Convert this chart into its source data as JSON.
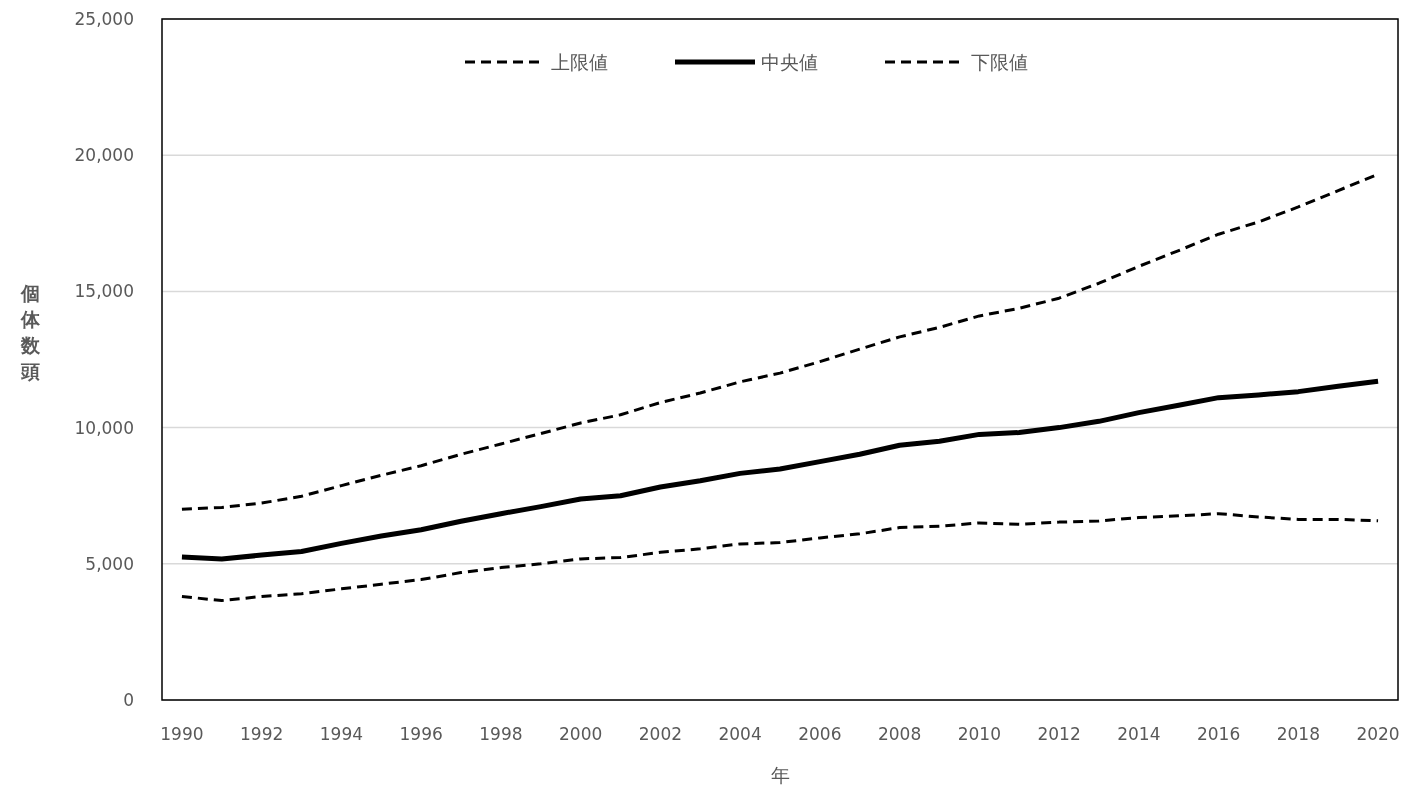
{
  "chart_data": {
    "type": "line",
    "xlabel": "年",
    "ylabel": "個体数頭",
    "x": [
      1990,
      1991,
      1992,
      1993,
      1994,
      1995,
      1996,
      1997,
      1998,
      1999,
      2000,
      2001,
      2002,
      2003,
      2004,
      2005,
      2006,
      2007,
      2008,
      2009,
      2010,
      2011,
      2012,
      2013,
      2014,
      2015,
      2016,
      2017,
      2018,
      2019,
      2020
    ],
    "series": [
      {
        "name": "上限値",
        "color": "#000000",
        "line_style": "dashed",
        "values": [
          7000,
          7070,
          7230,
          7480,
          7870,
          8250,
          8600,
          9020,
          9400,
          9780,
          10170,
          10470,
          10920,
          11270,
          11680,
          12000,
          12420,
          12880,
          13330,
          13680,
          14100,
          14380,
          14750,
          15300,
          15920,
          16500,
          17100,
          17550,
          18100,
          18700,
          19300
        ]
      },
      {
        "name": "中央値",
        "color": "#000000",
        "line_style": "solid",
        "values": [
          5250,
          5180,
          5320,
          5450,
          5750,
          6020,
          6250,
          6560,
          6840,
          7100,
          7380,
          7500,
          7820,
          8050,
          8320,
          8480,
          8750,
          9020,
          9350,
          9500,
          9750,
          9820,
          10000,
          10230,
          10550,
          10820,
          11100,
          11200,
          11320,
          11520,
          11700
        ]
      },
      {
        "name": "下限値",
        "color": "#000000",
        "line_style": "dashed",
        "values": [
          3800,
          3650,
          3800,
          3900,
          4080,
          4250,
          4420,
          4680,
          4860,
          5000,
          5180,
          5230,
          5420,
          5550,
          5730,
          5780,
          5950,
          6100,
          6330,
          6380,
          6500,
          6450,
          6530,
          6570,
          6700,
          6760,
          6840,
          6720,
          6630,
          6630,
          6580
        ]
      }
    ],
    "xlim": [
      1989.5,
      2020.5
    ],
    "xticks": [
      1990,
      1992,
      1994,
      1996,
      1998,
      2000,
      2002,
      2004,
      2006,
      2008,
      2010,
      2012,
      2014,
      2016,
      2018,
      2020
    ],
    "ylim": [
      0,
      25000
    ],
    "yticks": [
      {
        "value": 0,
        "label": "0"
      },
      {
        "value": 5000,
        "label": "5,000"
      },
      {
        "value": 10000,
        "label": "10,000"
      },
      {
        "value": 15000,
        "label": "15,000"
      },
      {
        "value": 20000,
        "label": "20,000"
      },
      {
        "value": 25000,
        "label": "25,000"
      }
    ],
    "grid": "y",
    "legend": "top"
  }
}
